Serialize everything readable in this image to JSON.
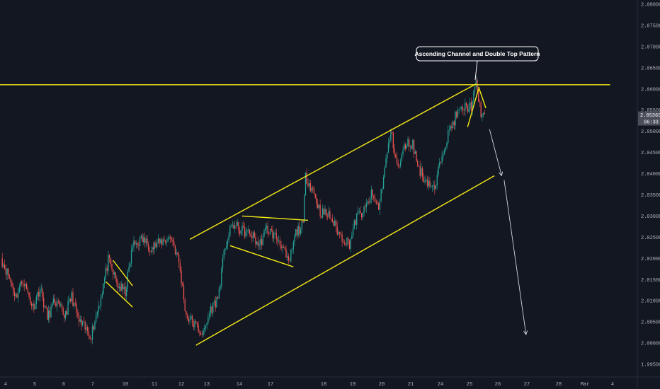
{
  "colors": {
    "background": "#131722",
    "up": "#26a69a",
    "down": "#ef5350",
    "trendline": "#f5ea14",
    "arrow": "#d1d4dc",
    "axis_text": "#b2b5be"
  },
  "annotation": {
    "text": "Ascending Channel and Double Top Pattern"
  },
  "last_price": {
    "value": "2.05369",
    "countdown": "06:33"
  },
  "chart_data": {
    "type": "candlestick",
    "title": "",
    "xlabel": "",
    "ylabel": "",
    "grid": false,
    "ylim": [
      1.9925,
      2.081
    ],
    "yticks": [
      "1.99500",
      "2.00000",
      "2.00500",
      "2.01000",
      "2.01500",
      "2.02000",
      "2.02500",
      "2.03000",
      "2.03500",
      "2.04000",
      "2.04500",
      "2.05000",
      "2.05500",
      "2.06000",
      "2.06500",
      "2.07000",
      "2.07500",
      "2.08000"
    ],
    "xticks": [
      "4",
      "5",
      "6",
      "7",
      "10",
      "11",
      "12",
      "13",
      "14",
      "17",
      "18",
      "19",
      "20",
      "21",
      "24",
      "25",
      "26",
      "27",
      "28",
      "Mar",
      "4"
    ],
    "anchors": [
      [
        0,
        2.02
      ],
      [
        6,
        2.016
      ],
      [
        12,
        2.011
      ],
      [
        18,
        2.015
      ],
      [
        26,
        2.0085
      ],
      [
        32,
        2.013
      ],
      [
        38,
        2.006
      ],
      [
        44,
        2.01
      ],
      [
        52,
        2.0065
      ],
      [
        58,
        2.011
      ],
      [
        64,
        2.005
      ],
      [
        70,
        2.003
      ],
      [
        74,
        2.002
      ],
      [
        82,
        2.011
      ],
      [
        88,
        2.0195
      ],
      [
        96,
        2.0135
      ],
      [
        102,
        2.012
      ],
      [
        108,
        2.023
      ],
      [
        116,
        2.0245
      ],
      [
        124,
        2.0225
      ],
      [
        132,
        2.024
      ],
      [
        140,
        2.025
      ],
      [
        146,
        2.019
      ],
      [
        152,
        2.0065
      ],
      [
        160,
        2.004
      ],
      [
        166,
        2.002
      ],
      [
        172,
        2.008
      ],
      [
        178,
        2.0105
      ],
      [
        184,
        2.023
      ],
      [
        190,
        2.028
      ],
      [
        198,
        2.0265
      ],
      [
        206,
        2.0255
      ],
      [
        212,
        2.023
      ],
      [
        218,
        2.027
      ],
      [
        224,
        2.0255
      ],
      [
        230,
        2.0235
      ],
      [
        236,
        2.0185
      ],
      [
        242,
        2.026
      ],
      [
        248,
        2.028
      ],
      [
        250,
        2.0395
      ],
      [
        256,
        2.036
      ],
      [
        262,
        2.031
      ],
      [
        270,
        2.03
      ],
      [
        278,
        2.0255
      ],
      [
        286,
        2.0235
      ],
      [
        292,
        2.03
      ],
      [
        298,
        2.031
      ],
      [
        304,
        2.035
      ],
      [
        310,
        2.032
      ],
      [
        316,
        2.043
      ],
      [
        320,
        2.05
      ],
      [
        326,
        2.041
      ],
      [
        332,
        2.047
      ],
      [
        338,
        2.047
      ],
      [
        342,
        2.042
      ],
      [
        346,
        2.0395
      ],
      [
        352,
        2.0375
      ],
      [
        356,
        2.036
      ],
      [
        362,
        2.045
      ],
      [
        368,
        2.05
      ],
      [
        374,
        2.054
      ],
      [
        380,
        2.0555
      ],
      [
        386,
        2.056
      ],
      [
        390,
        2.061
      ],
      [
        394,
        2.0545
      ],
      [
        397,
        2.0535
      ]
    ],
    "trendlines": [
      {
        "name": "horizontal-resistance",
        "from": [
          -2,
          2.061
        ],
        "to": [
          500,
          2.061
        ]
      },
      {
        "name": "channel-upper",
        "from": [
          155,
          2.0245
        ],
        "to": [
          390,
          2.0612
        ]
      },
      {
        "name": "channel-lower",
        "from": [
          160,
          1.9995
        ],
        "to": [
          405,
          2.0395
        ]
      },
      {
        "name": "flag-1-upper",
        "from": [
          92,
          2.0195
        ],
        "to": [
          108,
          2.0135
        ]
      },
      {
        "name": "flag-1-lower",
        "from": [
          86,
          2.0145
        ],
        "to": [
          108,
          2.0085
        ]
      },
      {
        "name": "triangle-upper",
        "from": [
          198,
          2.03
        ],
        "to": [
          252,
          2.029
        ]
      },
      {
        "name": "triangle-lower",
        "from": [
          188,
          2.023
        ],
        "to": [
          240,
          2.018
        ]
      },
      {
        "name": "double-top-left",
        "from": [
          383,
          2.051
        ],
        "to": [
          392,
          2.06
        ]
      },
      {
        "name": "double-top-right",
        "from": [
          392,
          2.0605
        ],
        "to": [
          398,
          2.0555
        ]
      }
    ],
    "arrows": [
      {
        "from": [
          401,
          2.0505
        ],
        "to": [
          411,
          2.0395
        ]
      },
      {
        "from": [
          413,
          2.0385
        ],
        "to": [
          431,
          2.002
        ]
      }
    ]
  }
}
